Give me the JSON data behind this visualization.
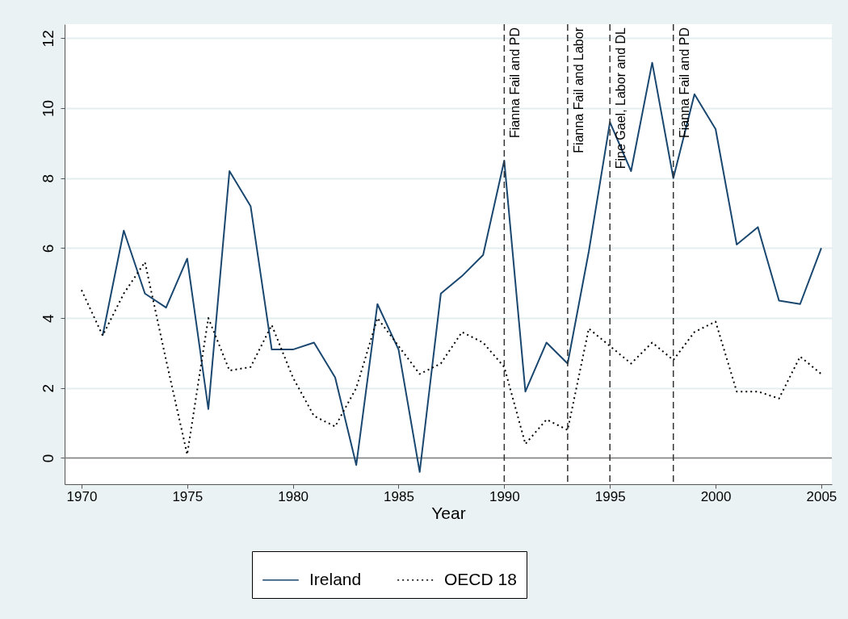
{
  "chart_data": {
    "type": "line",
    "xlabel": "Year",
    "x": [
      1970,
      1971,
      1972,
      1973,
      1974,
      1975,
      1976,
      1977,
      1978,
      1979,
      1980,
      1981,
      1982,
      1983,
      1984,
      1985,
      1986,
      1987,
      1988,
      1989,
      1990,
      1991,
      1992,
      1993,
      1994,
      1995,
      1996,
      1997,
      1998,
      1999,
      2000,
      2001,
      2002,
      2003,
      2004,
      2005
    ],
    "series": [
      {
        "name": "Ireland",
        "color": "#1a476f",
        "line_style": "solid",
        "values": [
          null,
          3.5,
          6.5,
          4.7,
          4.3,
          5.7,
          1.4,
          8.2,
          7.2,
          3.1,
          3.1,
          3.3,
          2.3,
          -0.2,
          4.4,
          3.1,
          -0.4,
          4.7,
          5.2,
          5.8,
          8.5,
          1.9,
          3.3,
          2.7,
          5.9,
          9.6,
          8.2,
          11.3,
          8.0,
          10.4,
          9.4,
          6.1,
          6.6,
          4.5,
          4.4,
          6.0
        ]
      },
      {
        "name": "OECD 18",
        "color": "#000000",
        "line_style": "dotted",
        "values": [
          4.8,
          3.5,
          4.7,
          5.6,
          2.8,
          0.1,
          4.0,
          2.5,
          2.6,
          3.8,
          2.3,
          1.2,
          0.9,
          2.0,
          4.0,
          3.2,
          2.4,
          2.7,
          3.6,
          3.3,
          2.6,
          0.4,
          1.1,
          0.8,
          3.7,
          3.2,
          2.7,
          3.3,
          2.8,
          3.6,
          3.9,
          1.9,
          1.9,
          1.7,
          2.9,
          2.4
        ]
      }
    ],
    "xlim": [
      1969.2,
      2005.5
    ],
    "xticks": [
      1970,
      1975,
      1980,
      1985,
      1990,
      1995,
      2000,
      2005
    ],
    "ylim": [
      -0.75,
      12.4
    ],
    "yticks": [
      0,
      2,
      4,
      6,
      8,
      10,
      12
    ],
    "grid": "y",
    "legend": "bottom",
    "ref_lines": [
      {
        "axis": "y",
        "value": 0,
        "color": "#7f7f7f",
        "line_style": "solid"
      },
      {
        "axis": "x",
        "value": 1990,
        "label": "Fianna Fail and PD",
        "color": "#333333",
        "line_style": "dashed"
      },
      {
        "axis": "x",
        "value": 1993,
        "label": "Fianna Fail and Labor",
        "color": "#333333",
        "line_style": "dashed"
      },
      {
        "axis": "x",
        "value": 1995,
        "label": "Fine Gael, Labor and DL",
        "color": "#333333",
        "line_style": "dashed"
      },
      {
        "axis": "x",
        "value": 1998,
        "label": "Fianna Fail and PD",
        "color": "#333333",
        "line_style": "dashed"
      }
    ]
  }
}
